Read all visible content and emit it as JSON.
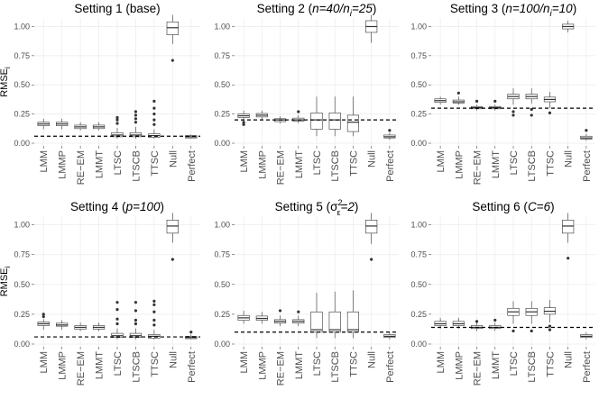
{
  "chart_data": [
    {
      "type": "boxplot",
      "title_parts": [
        "Setting 1 (base)"
      ],
      "ylabel": "RMSE",
      "ylabel_sub": "i",
      "categories": [
        "LMM",
        "LMMP",
        "RE−EM",
        "LMMT",
        "LTSC",
        "LTSCB",
        "TTSC",
        "Null",
        "Perfect"
      ],
      "yticks": [
        "0.00",
        "0.25",
        "0.50",
        "0.75",
        "1.00"
      ],
      "ylim": [
        0,
        1.05
      ],
      "reference_line": 0.06,
      "boxes": [
        {
          "min": 0.12,
          "q1": 0.15,
          "median": 0.165,
          "q3": 0.18,
          "max": 0.21,
          "outliers": []
        },
        {
          "min": 0.12,
          "q1": 0.15,
          "median": 0.165,
          "q3": 0.18,
          "max": 0.21,
          "outliers": []
        },
        {
          "min": 0.11,
          "q1": 0.125,
          "median": 0.14,
          "q3": 0.155,
          "max": 0.18,
          "outliers": []
        },
        {
          "min": 0.11,
          "q1": 0.125,
          "median": 0.14,
          "q3": 0.155,
          "max": 0.18,
          "outliers": []
        },
        {
          "min": 0.04,
          "q1": 0.055,
          "median": 0.07,
          "q3": 0.09,
          "max": 0.13,
          "outliers": [
            0.17,
            0.2,
            0.22
          ]
        },
        {
          "min": 0.04,
          "q1": 0.055,
          "median": 0.07,
          "q3": 0.09,
          "max": 0.14,
          "outliers": [
            0.18,
            0.21,
            0.24,
            0.27
          ]
        },
        {
          "min": 0.04,
          "q1": 0.05,
          "median": 0.065,
          "q3": 0.08,
          "max": 0.12,
          "outliers": [
            0.16,
            0.2,
            0.25,
            0.3,
            0.36
          ]
        },
        {
          "min": 0.85,
          "q1": 0.93,
          "median": 0.99,
          "q3": 1.04,
          "max": 1.1,
          "outliers": [
            0.71
          ]
        },
        {
          "min": 0.04,
          "q1": 0.045,
          "median": 0.055,
          "q3": 0.065,
          "max": 0.075,
          "outliers": []
        }
      ]
    },
    {
      "type": "boxplot",
      "title_parts": [
        "Setting 2 (",
        "n=40/n",
        "i",
        "=25",
        ")"
      ],
      "ylabel": "",
      "ylabel_sub": "",
      "categories": [
        "LMM",
        "LMMP",
        "RE−EM",
        "LMMT",
        "LTSC",
        "LTSCB",
        "TTSC",
        "Null",
        "Perfect"
      ],
      "yticks": [
        "0.00",
        "0.25",
        "0.50",
        "0.75",
        "1.00"
      ],
      "ylim": [
        0,
        1.05
      ],
      "reference_line": 0.2,
      "boxes": [
        {
          "min": 0.19,
          "q1": 0.22,
          "median": 0.235,
          "q3": 0.25,
          "max": 0.28,
          "outliers": [
            0.16,
            0.18
          ]
        },
        {
          "min": 0.2,
          "q1": 0.225,
          "median": 0.24,
          "q3": 0.255,
          "max": 0.28,
          "outliers": []
        },
        {
          "min": 0.17,
          "q1": 0.185,
          "median": 0.2,
          "q3": 0.21,
          "max": 0.23,
          "outliers": []
        },
        {
          "min": 0.17,
          "q1": 0.19,
          "median": 0.2,
          "q3": 0.215,
          "max": 0.24,
          "outliers": [
            0.27
          ]
        },
        {
          "min": 0.06,
          "q1": 0.12,
          "median": 0.2,
          "q3": 0.26,
          "max": 0.4,
          "outliers": []
        },
        {
          "min": 0.06,
          "q1": 0.12,
          "median": 0.2,
          "q3": 0.26,
          "max": 0.4,
          "outliers": []
        },
        {
          "min": 0.06,
          "q1": 0.1,
          "median": 0.18,
          "q3": 0.24,
          "max": 0.4,
          "outliers": []
        },
        {
          "min": 0.86,
          "q1": 0.95,
          "median": 1.0,
          "q3": 1.05,
          "max": 1.1,
          "outliers": []
        },
        {
          "min": 0.03,
          "q1": 0.045,
          "median": 0.055,
          "q3": 0.07,
          "max": 0.09,
          "outliers": [
            0.11
          ]
        }
      ]
    },
    {
      "type": "boxplot",
      "title_parts": [
        "Setting 3 (",
        "n=100/n",
        "i",
        "=10",
        ")"
      ],
      "ylabel": "",
      "ylabel_sub": "",
      "categories": [
        "LMM",
        "LMMP",
        "RE−EM",
        "LMMT",
        "LTSC",
        "LTSCB",
        "TTSC",
        "Null",
        "Perfect"
      ],
      "yticks": [
        "0.00",
        "0.25",
        "0.50",
        "0.75",
        "1.00"
      ],
      "ylim": [
        0,
        1.05
      ],
      "reference_line": 0.3,
      "boxes": [
        {
          "min": 0.33,
          "q1": 0.35,
          "median": 0.365,
          "q3": 0.38,
          "max": 0.4,
          "outliers": []
        },
        {
          "min": 0.33,
          "q1": 0.345,
          "median": 0.355,
          "q3": 0.37,
          "max": 0.4,
          "outliers": [
            0.43
          ]
        },
        {
          "min": 0.28,
          "q1": 0.295,
          "median": 0.305,
          "q3": 0.315,
          "max": 0.33,
          "outliers": [
            0.36
          ]
        },
        {
          "min": 0.28,
          "q1": 0.295,
          "median": 0.305,
          "q3": 0.315,
          "max": 0.33,
          "outliers": [
            0.36
          ]
        },
        {
          "min": 0.33,
          "q1": 0.38,
          "median": 0.4,
          "q3": 0.42,
          "max": 0.47,
          "outliers": [
            0.24,
            0.27
          ]
        },
        {
          "min": 0.34,
          "q1": 0.38,
          "median": 0.4,
          "q3": 0.42,
          "max": 0.47,
          "outliers": [
            0.24,
            0.29
          ]
        },
        {
          "min": 0.3,
          "q1": 0.355,
          "median": 0.375,
          "q3": 0.395,
          "max": 0.44,
          "outliers": [
            0.26
          ]
        },
        {
          "min": 0.95,
          "q1": 0.98,
          "median": 1.0,
          "q3": 1.02,
          "max": 1.05,
          "outliers": []
        },
        {
          "min": 0.02,
          "q1": 0.035,
          "median": 0.045,
          "q3": 0.06,
          "max": 0.08,
          "outliers": [
            0.11
          ]
        }
      ]
    },
    {
      "type": "boxplot",
      "title_parts": [
        "Setting 4 (",
        "p=100",
        ")"
      ],
      "ylabel": "RMSE",
      "ylabel_sub": "i",
      "categories": [
        "LMM",
        "LMMP",
        "RE−EM",
        "LMMT",
        "LTSC",
        "LTSCB",
        "TTSC",
        "Null",
        "Perfect"
      ],
      "yticks": [
        "0.00",
        "0.25",
        "0.50",
        "0.75",
        "1.00"
      ],
      "ylim": [
        0,
        1.05
      ],
      "reference_line": 0.06,
      "boxes": [
        {
          "min": 0.12,
          "q1": 0.155,
          "median": 0.17,
          "q3": 0.185,
          "max": 0.21,
          "outliers": [
            0.23,
            0.25
          ]
        },
        {
          "min": 0.12,
          "q1": 0.15,
          "median": 0.16,
          "q3": 0.175,
          "max": 0.2,
          "outliers": []
        },
        {
          "min": 0.11,
          "q1": 0.125,
          "median": 0.14,
          "q3": 0.155,
          "max": 0.18,
          "outliers": []
        },
        {
          "min": 0.11,
          "q1": 0.125,
          "median": 0.14,
          "q3": 0.155,
          "max": 0.18,
          "outliers": []
        },
        {
          "min": 0.04,
          "q1": 0.055,
          "median": 0.07,
          "q3": 0.09,
          "max": 0.13,
          "outliers": [
            0.17,
            0.21,
            0.29,
            0.35
          ]
        },
        {
          "min": 0.04,
          "q1": 0.055,
          "median": 0.07,
          "q3": 0.09,
          "max": 0.13,
          "outliers": [
            0.17,
            0.2,
            0.28,
            0.35
          ]
        },
        {
          "min": 0.04,
          "q1": 0.05,
          "median": 0.065,
          "q3": 0.08,
          "max": 0.12,
          "outliers": [
            0.16,
            0.2,
            0.27,
            0.33,
            0.36
          ]
        },
        {
          "min": 0.85,
          "q1": 0.93,
          "median": 0.99,
          "q3": 1.04,
          "max": 1.1,
          "outliers": [
            0.71
          ]
        },
        {
          "min": 0.04,
          "q1": 0.045,
          "median": 0.055,
          "q3": 0.065,
          "max": 0.08,
          "outliers": [
            0.1
          ]
        }
      ]
    },
    {
      "type": "boxplot",
      "title_parts": [
        "Setting 5 (",
        "σ",
        "2",
        "ε",
        "=2",
        ")"
      ],
      "ylabel": "",
      "ylabel_sub": "",
      "categories": [
        "LMM",
        "LMMP",
        "RE−EM",
        "LMMT",
        "LTSC",
        "LTSCB",
        "TTSC",
        "Null",
        "Perfect"
      ],
      "yticks": [
        "0.00",
        "0.25",
        "0.50",
        "0.75",
        "1.00"
      ],
      "ylim": [
        0,
        1.05
      ],
      "reference_line": 0.1,
      "boxes": [
        {
          "min": 0.17,
          "q1": 0.2,
          "median": 0.22,
          "q3": 0.24,
          "max": 0.28,
          "outliers": []
        },
        {
          "min": 0.17,
          "q1": 0.2,
          "median": 0.215,
          "q3": 0.235,
          "max": 0.27,
          "outliers": []
        },
        {
          "min": 0.15,
          "q1": 0.175,
          "median": 0.19,
          "q3": 0.205,
          "max": 0.24,
          "outliers": [
            0.28
          ]
        },
        {
          "min": 0.15,
          "q1": 0.175,
          "median": 0.19,
          "q3": 0.205,
          "max": 0.24,
          "outliers": [
            0.27
          ]
        },
        {
          "min": 0.05,
          "q1": 0.1,
          "median": 0.12,
          "q3": 0.27,
          "max": 0.43,
          "outliers": []
        },
        {
          "min": 0.05,
          "q1": 0.1,
          "median": 0.12,
          "q3": 0.27,
          "max": 0.44,
          "outliers": []
        },
        {
          "min": 0.05,
          "q1": 0.1,
          "median": 0.12,
          "q3": 0.27,
          "max": 0.45,
          "outliers": []
        },
        {
          "min": 0.84,
          "q1": 0.93,
          "median": 0.99,
          "q3": 1.04,
          "max": 1.1,
          "outliers": [
            0.71
          ]
        },
        {
          "min": 0.04,
          "q1": 0.055,
          "median": 0.065,
          "q3": 0.08,
          "max": 0.1,
          "outliers": []
        }
      ]
    },
    {
      "type": "boxplot",
      "title_parts": [
        "Setting 6 (",
        "C=6",
        ")"
      ],
      "ylabel": "",
      "ylabel_sub": "",
      "categories": [
        "LMM",
        "LMMP",
        "RE−EM",
        "LMMT",
        "LTSC",
        "LTSCB",
        "TTSC",
        "Null",
        "Perfect"
      ],
      "yticks": [
        "0.00",
        "0.25",
        "0.50",
        "0.75",
        "1.00"
      ],
      "ylim": [
        0,
        1.05
      ],
      "reference_line": 0.14,
      "boxes": [
        {
          "min": 0.13,
          "q1": 0.155,
          "median": 0.17,
          "q3": 0.19,
          "max": 0.22,
          "outliers": []
        },
        {
          "min": 0.13,
          "q1": 0.155,
          "median": 0.17,
          "q3": 0.19,
          "max": 0.22,
          "outliers": []
        },
        {
          "min": 0.11,
          "q1": 0.13,
          "median": 0.14,
          "q3": 0.155,
          "max": 0.18,
          "outliers": [
            0.19
          ]
        },
        {
          "min": 0.11,
          "q1": 0.13,
          "median": 0.14,
          "q3": 0.155,
          "max": 0.18,
          "outliers": [
            0.2
          ]
        },
        {
          "min": 0.17,
          "q1": 0.24,
          "median": 0.27,
          "q3": 0.3,
          "max": 0.36,
          "outliers": [
            0.11
          ]
        },
        {
          "min": 0.17,
          "q1": 0.24,
          "median": 0.27,
          "q3": 0.3,
          "max": 0.36,
          "outliers": [
            0.11
          ]
        },
        {
          "min": 0.18,
          "q1": 0.25,
          "median": 0.275,
          "q3": 0.305,
          "max": 0.37,
          "outliers": [
            0.12,
            0.15
          ]
        },
        {
          "min": 0.85,
          "q1": 0.93,
          "median": 0.99,
          "q3": 1.04,
          "max": 1.1,
          "outliers": [
            0.72
          ]
        },
        {
          "min": 0.04,
          "q1": 0.055,
          "median": 0.065,
          "q3": 0.08,
          "max": 0.1,
          "outliers": []
        }
      ]
    }
  ]
}
